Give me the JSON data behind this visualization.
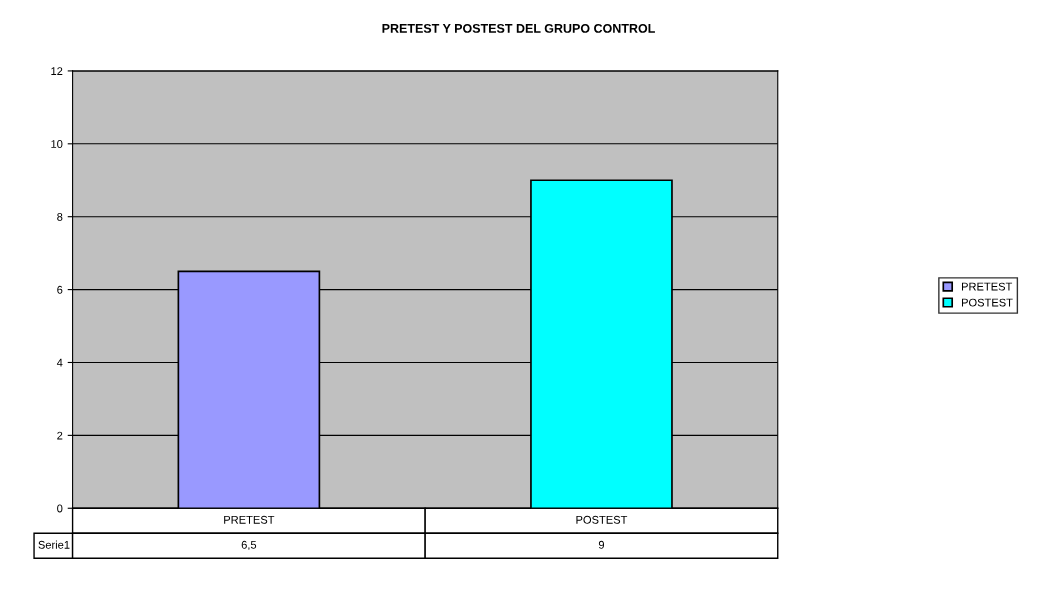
{
  "chart_data": {
    "type": "bar",
    "title": "PRETEST Y POSTEST DEL GRUPO CONTROL",
    "categories": [
      "PRETEST",
      "POSTEST"
    ],
    "annotations": [
      "Serie1"
    ],
    "series": [
      {
        "name": "PRETEST",
        "color": "#9999ff",
        "values": [
          6.5,
          null
        ],
        "value_labels": [
          "6,5",
          null
        ]
      },
      {
        "name": "POSTEST",
        "color": "#00ffff",
        "values": [
          null,
          9
        ],
        "value_labels": [
          null,
          "9"
        ]
      }
    ],
    "ylim": [
      0,
      12
    ],
    "yticks": [
      0,
      2,
      4,
      6,
      8,
      10,
      12
    ],
    "grid": "y",
    "legend": "right"
  }
}
